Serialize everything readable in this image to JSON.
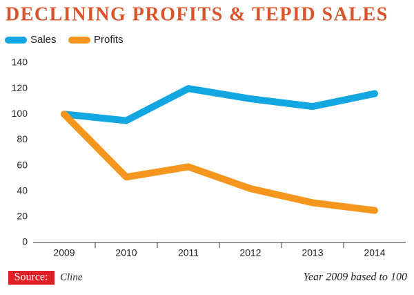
{
  "chart_data": {
    "type": "line",
    "title": "DECLINING PROFITS & TEPID SALES",
    "categories": [
      "2009",
      "2010",
      "2011",
      "2012",
      "2013",
      "2014"
    ],
    "series": [
      {
        "name": "Sales",
        "color": "#12a7e0",
        "values": [
          100,
          95,
          120,
          112,
          106,
          116
        ]
      },
      {
        "name": "Profits",
        "color": "#f5971f",
        "values": [
          100,
          51,
          59,
          42,
          31,
          25
        ]
      }
    ],
    "ylim": [
      0,
      140
    ],
    "yticks": [
      0,
      20,
      40,
      60,
      80,
      100,
      120,
      140
    ],
    "source_label": "Source:",
    "source": "Cline",
    "note": "Year 2009 based to 100"
  }
}
